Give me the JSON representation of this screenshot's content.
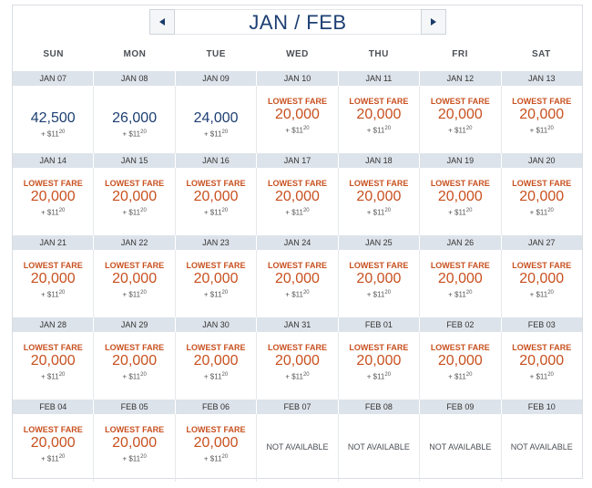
{
  "header": {
    "title": "JAN / FEB",
    "prev_icon": "chevron-left-icon",
    "next_icon": "chevron-right-icon"
  },
  "days_of_week": [
    "SUN",
    "MON",
    "TUE",
    "WED",
    "THU",
    "FRI",
    "SAT"
  ],
  "labels": {
    "lowest_fare": "LOWEST FARE",
    "not_available": "NOT AVAILABLE"
  },
  "colors": {
    "accent": "#c8501f",
    "navy": "#1d3f73",
    "date_bar": "#dde3ea"
  },
  "weeks": [
    {
      "dates": [
        "JAN 07",
        "JAN 08",
        "JAN 09",
        "JAN 10",
        "JAN 11",
        "JAN 12",
        "JAN 13"
      ],
      "cells": [
        {
          "status": "fare",
          "lowest": false,
          "miles": "42,500",
          "tax_prefix": "+ $",
          "tax_dollars": "11",
          "tax_cents": "20"
        },
        {
          "status": "fare",
          "lowest": false,
          "miles": "26,000",
          "tax_prefix": "+ $",
          "tax_dollars": "11",
          "tax_cents": "20"
        },
        {
          "status": "fare",
          "lowest": false,
          "miles": "24,000",
          "tax_prefix": "+ $",
          "tax_dollars": "11",
          "tax_cents": "20"
        },
        {
          "status": "fare",
          "lowest": true,
          "miles": "20,000",
          "tax_prefix": "+ $",
          "tax_dollars": "11",
          "tax_cents": "20"
        },
        {
          "status": "fare",
          "lowest": true,
          "miles": "20,000",
          "tax_prefix": "+ $",
          "tax_dollars": "11",
          "tax_cents": "20"
        },
        {
          "status": "fare",
          "lowest": true,
          "miles": "20,000",
          "tax_prefix": "+ $",
          "tax_dollars": "11",
          "tax_cents": "20"
        },
        {
          "status": "fare",
          "lowest": true,
          "miles": "20,000",
          "tax_prefix": "+ $",
          "tax_dollars": "11",
          "tax_cents": "20"
        }
      ]
    },
    {
      "dates": [
        "JAN 14",
        "JAN 15",
        "JAN 16",
        "JAN 17",
        "JAN 18",
        "JAN 19",
        "JAN 20"
      ],
      "cells": [
        {
          "status": "fare",
          "lowest": true,
          "miles": "20,000",
          "tax_prefix": "+ $",
          "tax_dollars": "11",
          "tax_cents": "20"
        },
        {
          "status": "fare",
          "lowest": true,
          "miles": "20,000",
          "tax_prefix": "+ $",
          "tax_dollars": "11",
          "tax_cents": "20"
        },
        {
          "status": "fare",
          "lowest": true,
          "miles": "20,000",
          "tax_prefix": "+ $",
          "tax_dollars": "11",
          "tax_cents": "20"
        },
        {
          "status": "fare",
          "lowest": true,
          "miles": "20,000",
          "tax_prefix": "+ $",
          "tax_dollars": "11",
          "tax_cents": "20"
        },
        {
          "status": "fare",
          "lowest": true,
          "miles": "20,000",
          "tax_prefix": "+ $",
          "tax_dollars": "11",
          "tax_cents": "20"
        },
        {
          "status": "fare",
          "lowest": true,
          "miles": "20,000",
          "tax_prefix": "+ $",
          "tax_dollars": "11",
          "tax_cents": "20"
        },
        {
          "status": "fare",
          "lowest": true,
          "miles": "20,000",
          "tax_prefix": "+ $",
          "tax_dollars": "11",
          "tax_cents": "20"
        }
      ]
    },
    {
      "dates": [
        "JAN 21",
        "JAN 22",
        "JAN 23",
        "JAN 24",
        "JAN 25",
        "JAN 26",
        "JAN 27"
      ],
      "cells": [
        {
          "status": "fare",
          "lowest": true,
          "miles": "20,000",
          "tax_prefix": "+ $",
          "tax_dollars": "11",
          "tax_cents": "20"
        },
        {
          "status": "fare",
          "lowest": true,
          "miles": "20,000",
          "tax_prefix": "+ $",
          "tax_dollars": "11",
          "tax_cents": "20"
        },
        {
          "status": "fare",
          "lowest": true,
          "miles": "20,000",
          "tax_prefix": "+ $",
          "tax_dollars": "11",
          "tax_cents": "20"
        },
        {
          "status": "fare",
          "lowest": true,
          "miles": "20,000",
          "tax_prefix": "+ $",
          "tax_dollars": "11",
          "tax_cents": "20"
        },
        {
          "status": "fare",
          "lowest": true,
          "miles": "20,000",
          "tax_prefix": "+ $",
          "tax_dollars": "11",
          "tax_cents": "20"
        },
        {
          "status": "fare",
          "lowest": true,
          "miles": "20,000",
          "tax_prefix": "+ $",
          "tax_dollars": "11",
          "tax_cents": "20"
        },
        {
          "status": "fare",
          "lowest": true,
          "miles": "20,000",
          "tax_prefix": "+ $",
          "tax_dollars": "11",
          "tax_cents": "20"
        }
      ]
    },
    {
      "dates": [
        "JAN 28",
        "JAN 29",
        "JAN 30",
        "JAN 31",
        "FEB 01",
        "FEB 02",
        "FEB 03"
      ],
      "cells": [
        {
          "status": "fare",
          "lowest": true,
          "miles": "20,000",
          "tax_prefix": "+ $",
          "tax_dollars": "11",
          "tax_cents": "20"
        },
        {
          "status": "fare",
          "lowest": true,
          "miles": "20,000",
          "tax_prefix": "+ $",
          "tax_dollars": "11",
          "tax_cents": "20"
        },
        {
          "status": "fare",
          "lowest": true,
          "miles": "20,000",
          "tax_prefix": "+ $",
          "tax_dollars": "11",
          "tax_cents": "20"
        },
        {
          "status": "fare",
          "lowest": true,
          "miles": "20,000",
          "tax_prefix": "+ $",
          "tax_dollars": "11",
          "tax_cents": "20"
        },
        {
          "status": "fare",
          "lowest": true,
          "miles": "20,000",
          "tax_prefix": "+ $",
          "tax_dollars": "11",
          "tax_cents": "20"
        },
        {
          "status": "fare",
          "lowest": true,
          "miles": "20,000",
          "tax_prefix": "+ $",
          "tax_dollars": "11",
          "tax_cents": "20"
        },
        {
          "status": "fare",
          "lowest": true,
          "miles": "20,000",
          "tax_prefix": "+ $",
          "tax_dollars": "11",
          "tax_cents": "20"
        }
      ]
    },
    {
      "dates": [
        "FEB 04",
        "FEB 05",
        "FEB 06",
        "FEB 07",
        "FEB 08",
        "FEB 09",
        "FEB 10"
      ],
      "cells": [
        {
          "status": "fare",
          "lowest": true,
          "miles": "20,000",
          "tax_prefix": "+ $",
          "tax_dollars": "11",
          "tax_cents": "20"
        },
        {
          "status": "fare",
          "lowest": true,
          "miles": "20,000",
          "tax_prefix": "+ $",
          "tax_dollars": "11",
          "tax_cents": "20"
        },
        {
          "status": "fare",
          "lowest": true,
          "miles": "20,000",
          "tax_prefix": "+ $",
          "tax_dollars": "11",
          "tax_cents": "20"
        },
        {
          "status": "na"
        },
        {
          "status": "na"
        },
        {
          "status": "na"
        },
        {
          "status": "na"
        }
      ]
    }
  ]
}
